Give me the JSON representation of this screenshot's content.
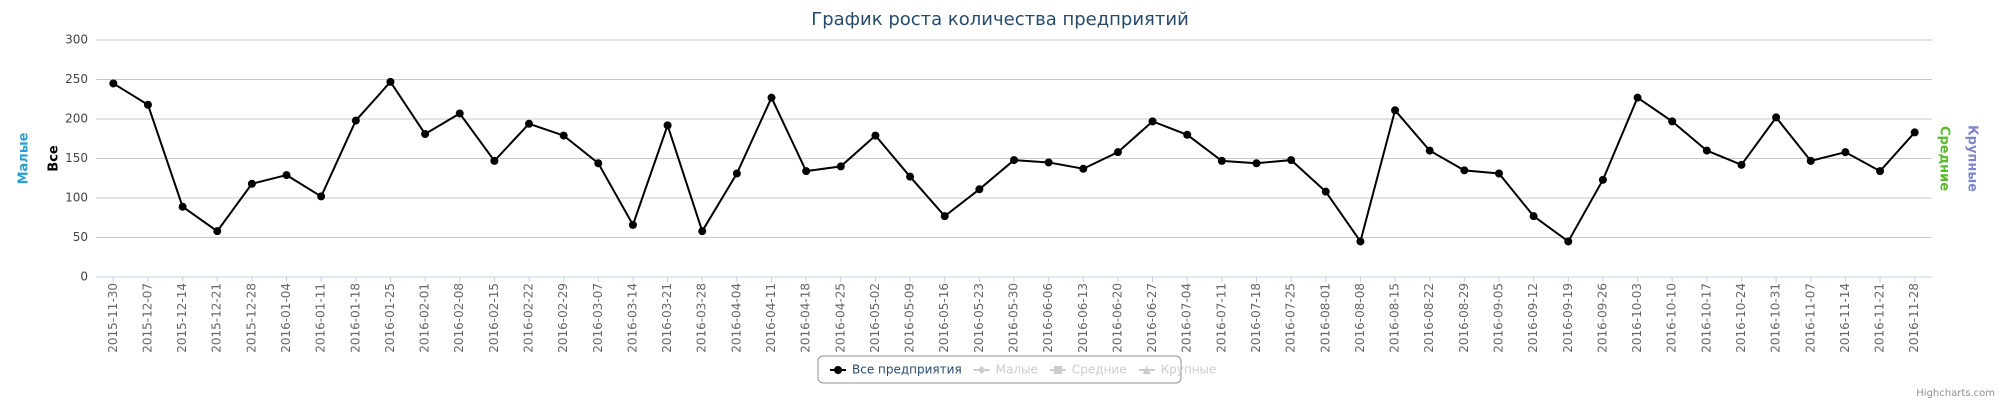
{
  "chart_data": {
    "type": "line",
    "title": "График роста количества предприятий",
    "categories": [
      "2015-11-30",
      "2015-12-07",
      "2015-12-14",
      "2015-12-21",
      "2015-12-28",
      "2016-01-04",
      "2016-01-11",
      "2016-01-18",
      "2016-01-25",
      "2016-02-01",
      "2016-02-08",
      "2016-02-15",
      "2016-02-22",
      "2016-02-29",
      "2016-03-07",
      "2016-03-14",
      "2016-03-21",
      "2016-03-28",
      "2016-04-04",
      "2016-04-11",
      "2016-04-18",
      "2016-04-25",
      "2016-05-02",
      "2016-05-09",
      "2016-05-16",
      "2016-05-23",
      "2016-05-30",
      "2016-06-06",
      "2016-06-13",
      "2016-06-20",
      "2016-06-27",
      "2016-07-04",
      "2016-07-11",
      "2016-07-18",
      "2016-07-25",
      "2016-08-01",
      "2016-08-08",
      "2016-08-15",
      "2016-08-22",
      "2016-08-29",
      "2016-09-05",
      "2016-09-12",
      "2016-09-19",
      "2016-09-26",
      "2016-10-03",
      "2016-10-10",
      "2016-10-17",
      "2016-10-24",
      "2016-10-31",
      "2016-11-07",
      "2016-11-14",
      "2016-11-21",
      "2016-11-28"
    ],
    "series": [
      {
        "name": "Все предприятия",
        "color": "#000000",
        "values": [
          245,
          218,
          89,
          58,
          118,
          129,
          102,
          198,
          247,
          181,
          207,
          147,
          194,
          179,
          144,
          66,
          192,
          58,
          131,
          227,
          134,
          140,
          179,
          127,
          77,
          111,
          148,
          145,
          137,
          158,
          197,
          180,
          147,
          144,
          148,
          108,
          45,
          211,
          160,
          135,
          131,
          77,
          45,
          123,
          227,
          197,
          160,
          142,
          202,
          147,
          158,
          134,
          183
        ]
      }
    ],
    "hidden_series": [
      {
        "name": "Малые"
      },
      {
        "name": "Средние"
      },
      {
        "name": "Крупные"
      }
    ],
    "y_axis_titles": [
      {
        "text": "Малые",
        "color": "#2a9fd6",
        "side": "left"
      },
      {
        "text": "Все",
        "color": "#000000",
        "side": "left"
      },
      {
        "text": "Средние",
        "color": "#5cb82e",
        "side": "right"
      },
      {
        "text": "Крупные",
        "color": "#8085c9",
        "side": "right"
      }
    ],
    "ylim": [
      0,
      300
    ],
    "yticks": [
      0,
      50,
      100,
      150,
      200,
      250,
      300
    ],
    "grid": true,
    "credit": "Highcharts.com"
  }
}
